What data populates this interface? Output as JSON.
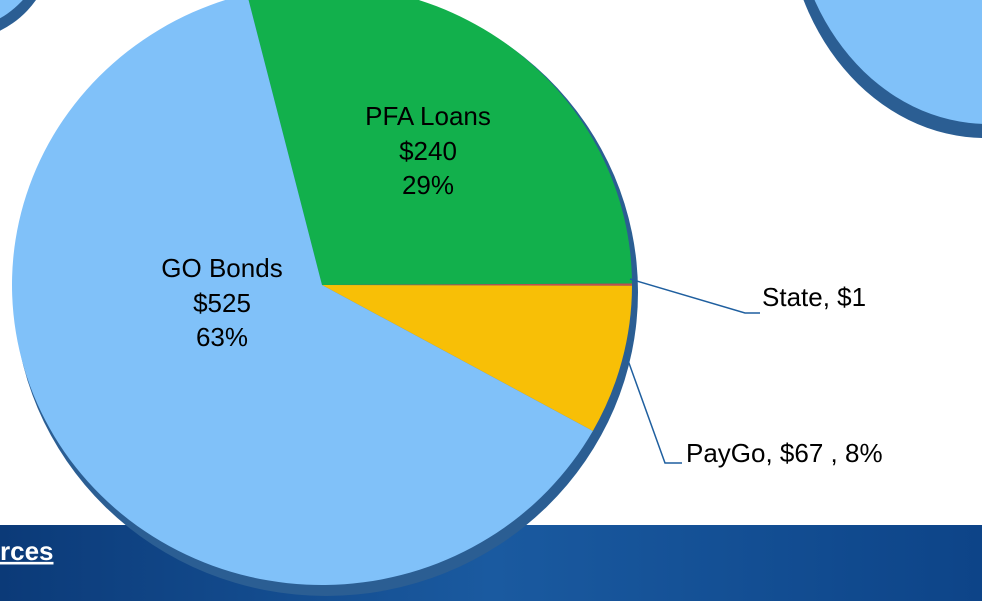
{
  "chart_data": {
    "type": "pie",
    "categories": [
      "GO Bonds",
      "PFA Loans",
      "State",
      "PayGo"
    ],
    "values": [
      525,
      240,
      1,
      67
    ],
    "value_labels": [
      "$525",
      "$240",
      "State,  $1",
      "PayGo,  $67 , 8%"
    ],
    "percents": [
      63,
      29,
      null,
      8
    ],
    "percent_labels": [
      "63%",
      "29%",
      null,
      null
    ],
    "colors": [
      "#80c1f9",
      "#12b04c",
      "#c0504d",
      "#f8bf06"
    ]
  },
  "footer": {
    "text": "rces"
  }
}
